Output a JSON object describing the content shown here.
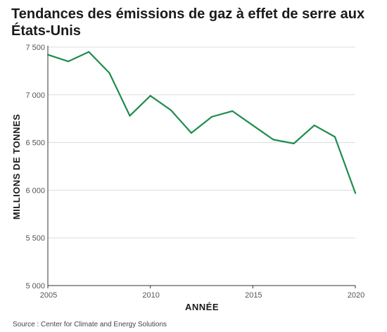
{
  "title": "Tendances des émissions de gaz à effet de serre aux États-Unis",
  "source": "Source : Center for Climate and Energy Solutions",
  "chart_data": {
    "type": "line",
    "title": "Tendances des émissions de gaz à effet de serre aux États-Unis",
    "xlabel": "ANNÉE",
    "ylabel": "MILLIONS DE TONNES",
    "xlim": [
      2005,
      2020
    ],
    "ylim": [
      5000,
      7500
    ],
    "x_ticks": [
      2005,
      2010,
      2015,
      2020
    ],
    "y_ticks": [
      5000,
      5500,
      6000,
      6500,
      7000,
      7500
    ],
    "x_tick_labels": [
      "2005",
      "2010",
      "2015",
      "2020"
    ],
    "y_tick_labels": [
      "5 000",
      "5 500",
      "6 000",
      "6 500",
      "7 000",
      "7 500"
    ],
    "grid": "horizontal",
    "color": "#1e8c4e",
    "x": [
      2005,
      2006,
      2007,
      2008,
      2009,
      2010,
      2011,
      2012,
      2013,
      2014,
      2015,
      2016,
      2017,
      2018,
      2019,
      2020
    ],
    "values": [
      7420,
      7350,
      7450,
      7230,
      6780,
      6990,
      6840,
      6600,
      6770,
      6830,
      6680,
      6530,
      6490,
      6680,
      6560,
      5970
    ]
  }
}
